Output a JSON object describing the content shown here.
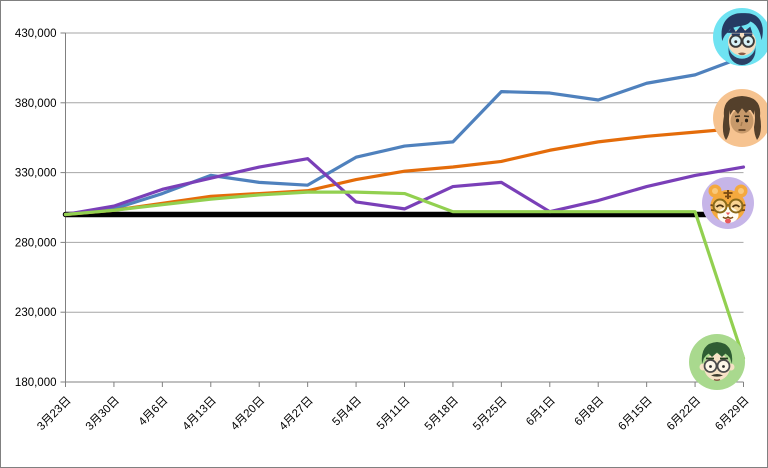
{
  "chart_data": {
    "type": "line",
    "title": "",
    "x_categories": [
      "3月23日",
      "3月30日",
      "4月6日",
      "4月13日",
      "4月20日",
      "4月27日",
      "5月4日",
      "5月11日",
      "5月18日",
      "5月25日",
      "6月1日",
      "6月8日",
      "6月15日",
      "6月22日",
      "6月29日"
    ],
    "ylim": [
      180000,
      430000
    ],
    "yticks": [
      {
        "value": 430000,
        "label": "430,000"
      },
      {
        "value": 380000,
        "label": "380,000"
      },
      {
        "value": 330000,
        "label": "330,000"
      },
      {
        "value": 280000,
        "label": "280,000"
      },
      {
        "value": 230000,
        "label": "230,000"
      },
      {
        "value": 180000,
        "label": "180,000"
      }
    ],
    "grid": "horizontal-only",
    "legend_position": "avatar icons at right ends of lines",
    "axis_color": "#808080",
    "gridline_color": "#A6A6A6",
    "series": [
      {
        "name": "baseline",
        "icon": "none",
        "color": "#000000",
        "baseline": true,
        "values": [
          300000,
          300000,
          300000,
          300000,
          300000,
          300000,
          300000,
          300000,
          300000,
          300000,
          300000,
          300000,
          300000,
          300000,
          300000
        ]
      },
      {
        "name": "user-cyan-avatar",
        "icon": "man-glasses-beard-cyan-circle",
        "color": "#4F81BD",
        "avatar_bg": "#6FE3F2",
        "values": [
          300000,
          304000,
          315000,
          328000,
          323000,
          321000,
          341000,
          349000,
          352000,
          388000,
          387000,
          382000,
          394000,
          400000,
          413000
        ]
      },
      {
        "name": "user-orange-avatar",
        "icon": "long-brown-hair-person-orange-circle",
        "color": "#E46C0A",
        "avatar_bg": "#F6C390",
        "values": [
          300000,
          303000,
          308000,
          313000,
          315000,
          317000,
          325000,
          331000,
          334000,
          338000,
          346000,
          352000,
          356000,
          359000,
          362000
        ]
      },
      {
        "name": "user-purple-avatar",
        "icon": "tiger-face-glasses-lavender-circle",
        "color": "#7A3FB8",
        "avatar_bg": "#C6B5E8",
        "values": [
          300000,
          306000,
          318000,
          326000,
          334000,
          340000,
          309000,
          304000,
          320000,
          323000,
          302000,
          310000,
          320000,
          328000,
          334000
        ]
      },
      {
        "name": "user-green-avatar",
        "icon": "man-green-hair-glasses-mustache-green-circle",
        "color": "#92D050",
        "avatar_bg": "#A9D98E",
        "values": [
          300000,
          303000,
          307000,
          311000,
          314000,
          316000,
          316000,
          315000,
          302000,
          302000,
          302000,
          302000,
          302000,
          302000,
          197000
        ]
      }
    ]
  }
}
